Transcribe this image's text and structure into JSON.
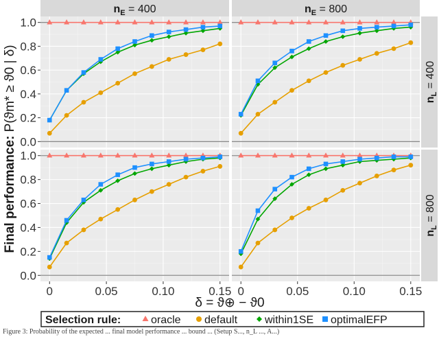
{
  "chart_data": {
    "type": "line",
    "y_label_main": "Final performance:",
    "y_label_prob": "P(ϑm* ≥ ϑ0 | δ)",
    "x_label": "δ = ϑ⊕ − ϑ0",
    "x": [
      0,
      0.015,
      0.03,
      0.045,
      0.06,
      0.075,
      0.09,
      0.105,
      0.12,
      0.135,
      0.15
    ],
    "x_ticks": [
      "0",
      "0.05",
      "0.10",
      "0.15"
    ],
    "y_ticks": [
      "0.0",
      "0.2",
      "0.4",
      "0.6",
      "0.8",
      "1.0"
    ],
    "xlim": [
      -0.008,
      0.158
    ],
    "ylim": [
      -0.05,
      1.05
    ],
    "grid": true,
    "legend_position": "bottom",
    "legend_title": "Selection rule:",
    "series_info": [
      {
        "name": "oracle",
        "color": "#F8766D",
        "marker": "triangle"
      },
      {
        "name": "default",
        "color": "#E69F00",
        "marker": "circle"
      },
      {
        "name": "within1SE",
        "color": "#00A600",
        "marker": "diamond"
      },
      {
        "name": "optimalEFP",
        "color": "#1E90FF",
        "marker": "square"
      }
    ],
    "panels": [
      {
        "col_label": "nE = 400",
        "row_label": "nL = 400",
        "series": {
          "oracle": [
            1,
            1,
            1,
            1,
            1,
            1,
            1,
            1,
            1,
            1,
            1
          ],
          "default": [
            0.07,
            0.22,
            0.33,
            0.41,
            0.49,
            0.57,
            0.63,
            0.69,
            0.73,
            0.77,
            0.82
          ],
          "within1SE": [
            0.18,
            0.43,
            0.57,
            0.67,
            0.75,
            0.81,
            0.85,
            0.88,
            0.91,
            0.93,
            0.95
          ],
          "optimalEFP": [
            0.18,
            0.43,
            0.58,
            0.69,
            0.78,
            0.84,
            0.89,
            0.92,
            0.94,
            0.96,
            0.97
          ]
        }
      },
      {
        "col_label": "nE = 800",
        "row_label": "nL = 400",
        "series": {
          "oracle": [
            1,
            1,
            1,
            1,
            1,
            1,
            1,
            1,
            1,
            1,
            1
          ],
          "default": [
            0.07,
            0.23,
            0.33,
            0.43,
            0.51,
            0.58,
            0.64,
            0.69,
            0.74,
            0.78,
            0.83
          ],
          "within1SE": [
            0.22,
            0.48,
            0.62,
            0.71,
            0.78,
            0.84,
            0.88,
            0.91,
            0.93,
            0.95,
            0.96
          ],
          "optimalEFP": [
            0.23,
            0.51,
            0.66,
            0.76,
            0.84,
            0.89,
            0.93,
            0.95,
            0.96,
            0.97,
            0.98
          ]
        }
      },
      {
        "col_label": "nE = 400",
        "row_label": "nL = 800",
        "series": {
          "oracle": [
            1,
            1,
            1,
            1,
            1,
            1,
            1,
            1,
            1,
            1,
            1
          ],
          "default": [
            0.07,
            0.27,
            0.38,
            0.47,
            0.55,
            0.63,
            0.7,
            0.76,
            0.82,
            0.87,
            0.91
          ],
          "within1SE": [
            0.14,
            0.44,
            0.61,
            0.71,
            0.79,
            0.85,
            0.89,
            0.92,
            0.95,
            0.97,
            0.98
          ],
          "optimalEFP": [
            0.15,
            0.46,
            0.63,
            0.76,
            0.84,
            0.9,
            0.93,
            0.95,
            0.97,
            0.98,
            0.99
          ]
        }
      },
      {
        "col_label": "nE = 800",
        "row_label": "nL = 800",
        "series": {
          "oracle": [
            1,
            1,
            1,
            1,
            1,
            1,
            1,
            1,
            1,
            1,
            1
          ],
          "default": [
            0.07,
            0.27,
            0.38,
            0.48,
            0.56,
            0.63,
            0.71,
            0.77,
            0.83,
            0.88,
            0.92
          ],
          "within1SE": [
            0.18,
            0.47,
            0.64,
            0.76,
            0.84,
            0.89,
            0.92,
            0.95,
            0.96,
            0.97,
            0.98
          ],
          "optimalEFP": [
            0.2,
            0.54,
            0.72,
            0.82,
            0.89,
            0.93,
            0.95,
            0.97,
            0.98,
            0.99,
            0.99
          ]
        }
      }
    ]
  },
  "caption": "Figure 3: Probability of the expected ... final model performance ... bound ... (Setup S..., n_L ..., A...)"
}
